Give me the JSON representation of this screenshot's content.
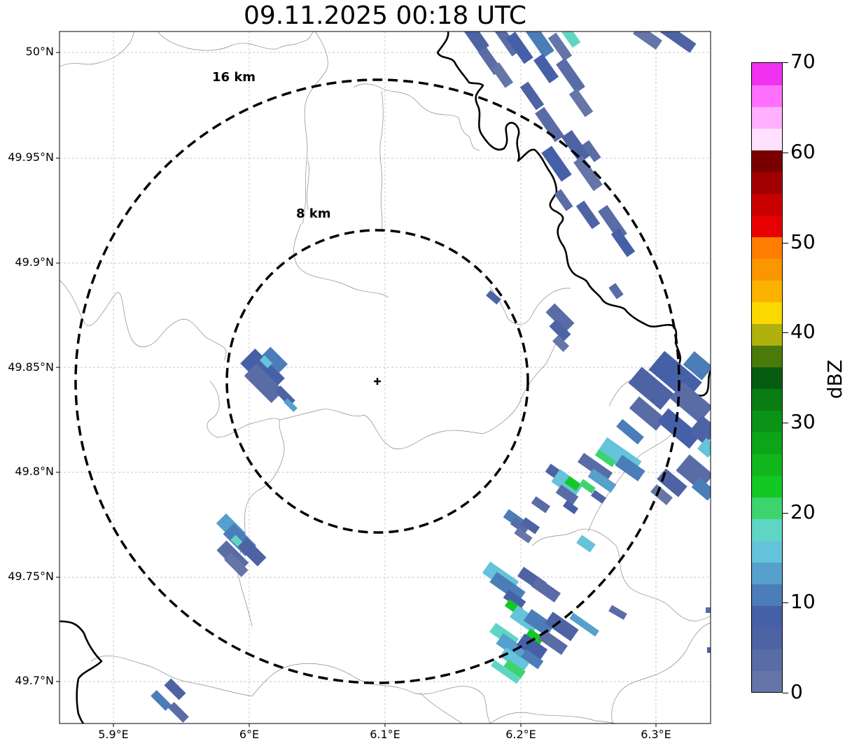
{
  "title": "09.11.2025 00:18 UTC",
  "lat_labels": [
    "50°N",
    "49.95°N",
    "49.9°N",
    "49.85°N",
    "49.8°N",
    "49.75°N",
    "49.7°N"
  ],
  "lon_labels": [
    "5.9°E",
    "6°E",
    "6.1°E",
    "6.2°E",
    "6.3°E"
  ],
  "range_rings": [
    {
      "label": "16 km",
      "radius_km": 16
    },
    {
      "label": "8 km",
      "radius_km": 8
    }
  ],
  "radar_site": {
    "lat": 49.843,
    "lon": 6.095,
    "marker": "plus-icon"
  },
  "colorbar": {
    "label": "dBZ",
    "ticks": [
      "0",
      "10",
      "20",
      "30",
      "40",
      "50",
      "60",
      "70"
    ],
    "min": 0,
    "max": 70,
    "colors": [
      "#6675a8",
      "#5a6ca6",
      "#4e63a4",
      "#4660a8",
      "#4b7db8",
      "#55a0cc",
      "#65c3dc",
      "#5fd6c4",
      "#3dd46e",
      "#13c823",
      "#11b51c",
      "#0ea41a",
      "#0b9318",
      "#097d14",
      "#065c10",
      "#4a7a0a",
      "#b0b10c",
      "#fbd900",
      "#fbb300",
      "#fa9600",
      "#ff7d00",
      "#e60000",
      "#c80000",
      "#a00000",
      "#7a0000",
      "#ffe0ff",
      "#ffb0ff",
      "#ff70ff",
      "#f032f0"
    ]
  }
}
